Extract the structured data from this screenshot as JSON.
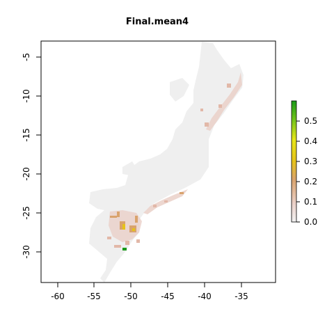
{
  "title": "Final.mean4",
  "x_ticks": [
    "-60",
    "-55",
    "-50",
    "-45",
    "-40",
    "-35"
  ],
  "y_ticks": [
    "-5",
    "-10",
    "-15",
    "-20",
    "-25",
    "-30"
  ],
  "legend_ticks": [
    "0.0",
    "0.1",
    "0.2",
    "0.3",
    "0.4",
    "0.5"
  ],
  "colors": {
    "land": "#efefef",
    "low": "#ead0c8",
    "mid": "#d9a36d",
    "high": "#e6c21a",
    "top": "#1a9a1a"
  },
  "chart_data": {
    "type": "heatmap",
    "title": "Final.mean4",
    "xlim": [
      -62,
      -30
    ],
    "ylim": [
      -34,
      -2
    ],
    "value_range": [
      0,
      0.6
    ],
    "legend_range": [
      0,
      0.6
    ]
  }
}
